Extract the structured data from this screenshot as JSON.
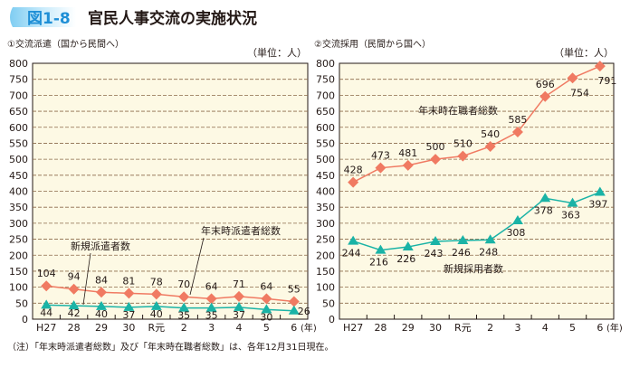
{
  "header": {
    "figure_label": "図1-8",
    "title": "官民人事交流の実施状況"
  },
  "colors": {
    "badge": "#5bb8e8",
    "badge_text": "#1f8fd6",
    "plot_bg": "#fdf9e4",
    "grid": "#8b6a4a",
    "total_series": "#f07a62",
    "new_series": "#1ab3a6"
  },
  "footnote": "（注）「年末時派遣者総数」及び「年末時在職者総数」は、各年12月31日現在。",
  "chart_data": [
    {
      "type": "line",
      "title": "①交流派遣（国から民間へ）",
      "unit": "（単位：人）",
      "categories": [
        "H27",
        "28",
        "29",
        "30",
        "R元",
        "2",
        "3",
        "4",
        "5",
        "6"
      ],
      "x_unit": "(年)",
      "ylim": [
        0,
        800
      ],
      "yticks": [
        0,
        50,
        100,
        150,
        200,
        250,
        300,
        350,
        400,
        450,
        500,
        550,
        600,
        650,
        700,
        750,
        800
      ],
      "grid": true,
      "series": [
        {
          "name": "年末時派遣者総数",
          "marker": "diamond",
          "values": [
            104,
            94,
            84,
            81,
            78,
            70,
            64,
            71,
            64,
            55
          ]
        },
        {
          "name": "新規派遣者数",
          "marker": "triangle",
          "values": [
            44,
            42,
            40,
            37,
            40,
            35,
            35,
            37,
            30,
            26
          ]
        }
      ]
    },
    {
      "type": "line",
      "title": "②交流採用（民間から国へ）",
      "unit": "（単位：人）",
      "categories": [
        "H27",
        "28",
        "29",
        "30",
        "R元",
        "2",
        "3",
        "4",
        "5",
        "6"
      ],
      "x_unit": "(年)",
      "ylim": [
        0,
        800
      ],
      "yticks": [
        0,
        50,
        100,
        150,
        200,
        250,
        300,
        350,
        400,
        450,
        500,
        550,
        600,
        650,
        700,
        750,
        800
      ],
      "grid": true,
      "series": [
        {
          "name": "年末時在職者総数",
          "marker": "diamond",
          "values": [
            428,
            473,
            481,
            500,
            510,
            540,
            585,
            696,
            754,
            791
          ]
        },
        {
          "name": "新規採用者数",
          "marker": "triangle",
          "values": [
            244,
            216,
            226,
            243,
            246,
            248,
            308,
            378,
            363,
            397
          ]
        }
      ]
    }
  ]
}
